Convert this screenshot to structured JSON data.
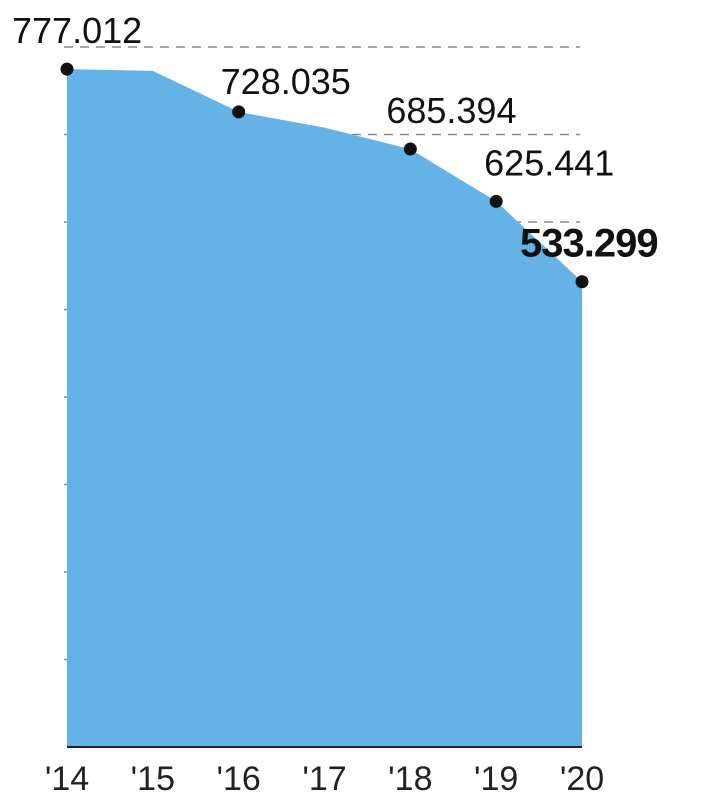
{
  "chart_data": {
    "type": "area",
    "categories": [
      "'14",
      "'15",
      "'16",
      "'17",
      "'18",
      "'19",
      "'20"
    ],
    "points": [
      {
        "x": 2014,
        "y": 777.012,
        "label": "777.012",
        "marker": true
      },
      {
        "x": 2015,
        "y": 775.0,
        "label": "",
        "marker": false
      },
      {
        "x": 2016,
        "y": 728.035,
        "label": "728.035",
        "marker": true
      },
      {
        "x": 2017,
        "y": 710.0,
        "label": "",
        "marker": false
      },
      {
        "x": 2018,
        "y": 685.394,
        "label": "685.394",
        "marker": true
      },
      {
        "x": 2019,
        "y": 625.441,
        "label": "625.441",
        "marker": true
      },
      {
        "x": 2020,
        "y": 533.299,
        "label": "533.299",
        "marker": true,
        "emphasis": true
      }
    ],
    "ylim": [
      0,
      800
    ],
    "xlim": [
      2014,
      2020
    ],
    "grid": true,
    "color": "#65b2e6",
    "title": "",
    "xlabel": "",
    "ylabel": ""
  }
}
